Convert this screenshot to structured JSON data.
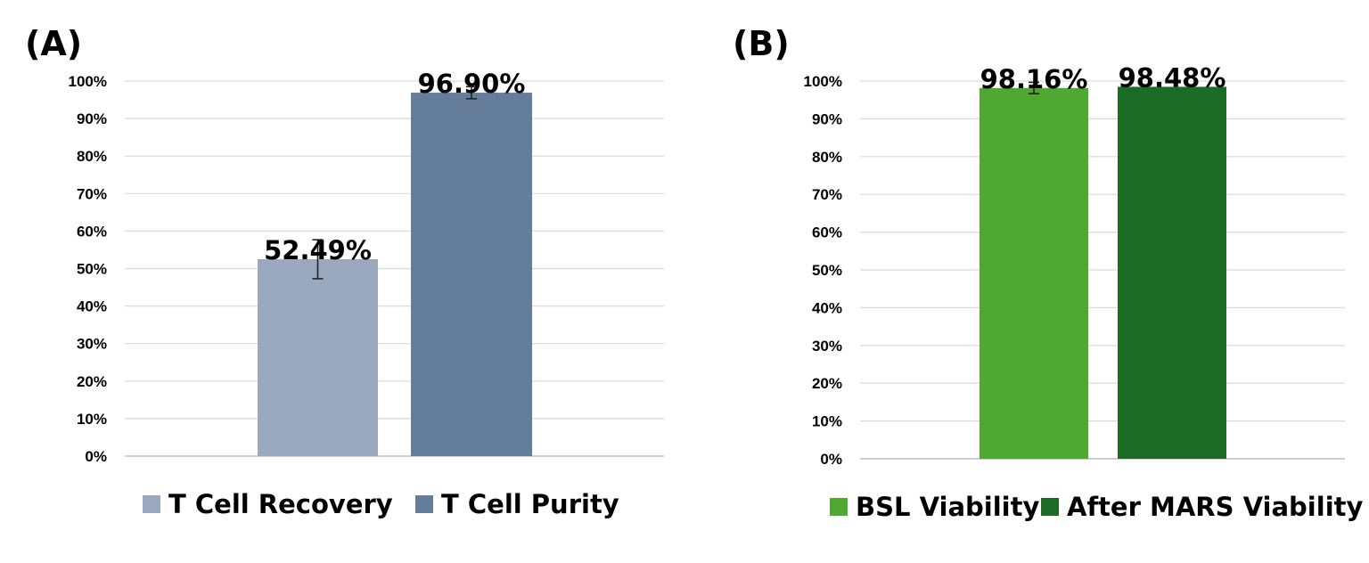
{
  "chart_data": [
    {
      "panel_label": "(A)",
      "type": "bar",
      "categories": [
        "T Cell Recovery",
        "T Cell Purity"
      ],
      "values": [
        52.49,
        96.9
      ],
      "value_labels": [
        "52.49%",
        "96.90%"
      ],
      "error_bars": [
        5.2,
        1.6
      ],
      "colors": [
        "#9aa9bf",
        "#647d9b"
      ],
      "ylim": [
        0,
        100
      ],
      "ytick_values": [
        0,
        10,
        20,
        30,
        40,
        50,
        60,
        70,
        80,
        90,
        100
      ],
      "ytick_labels": [
        "0%",
        "10%",
        "20%",
        "30%",
        "40%",
        "50%",
        "60%",
        "70%",
        "80%",
        "90%",
        "100%"
      ],
      "grid": true,
      "legend_position": "bottom",
      "title": "",
      "xlabel": "",
      "ylabel": ""
    },
    {
      "panel_label": "(B)",
      "type": "bar",
      "categories": [
        "BSL Viability",
        "After MARS Viability"
      ],
      "values": [
        98.16,
        98.48
      ],
      "value_labels": [
        "98.16%",
        "98.48%"
      ],
      "error_bars": [
        1.5,
        0.0
      ],
      "colors": [
        "#4ea832",
        "#1c6b25"
      ],
      "ylim": [
        0,
        100
      ],
      "ytick_values": [
        0,
        10,
        20,
        30,
        40,
        50,
        60,
        70,
        80,
        90,
        100
      ],
      "ytick_labels": [
        "0%",
        "10%",
        "20%",
        "30%",
        "40%",
        "50%",
        "60%",
        "70%",
        "80%",
        "90%",
        "100%"
      ],
      "grid": true,
      "legend_position": "bottom",
      "title": "",
      "xlabel": "",
      "ylabel": ""
    }
  ]
}
